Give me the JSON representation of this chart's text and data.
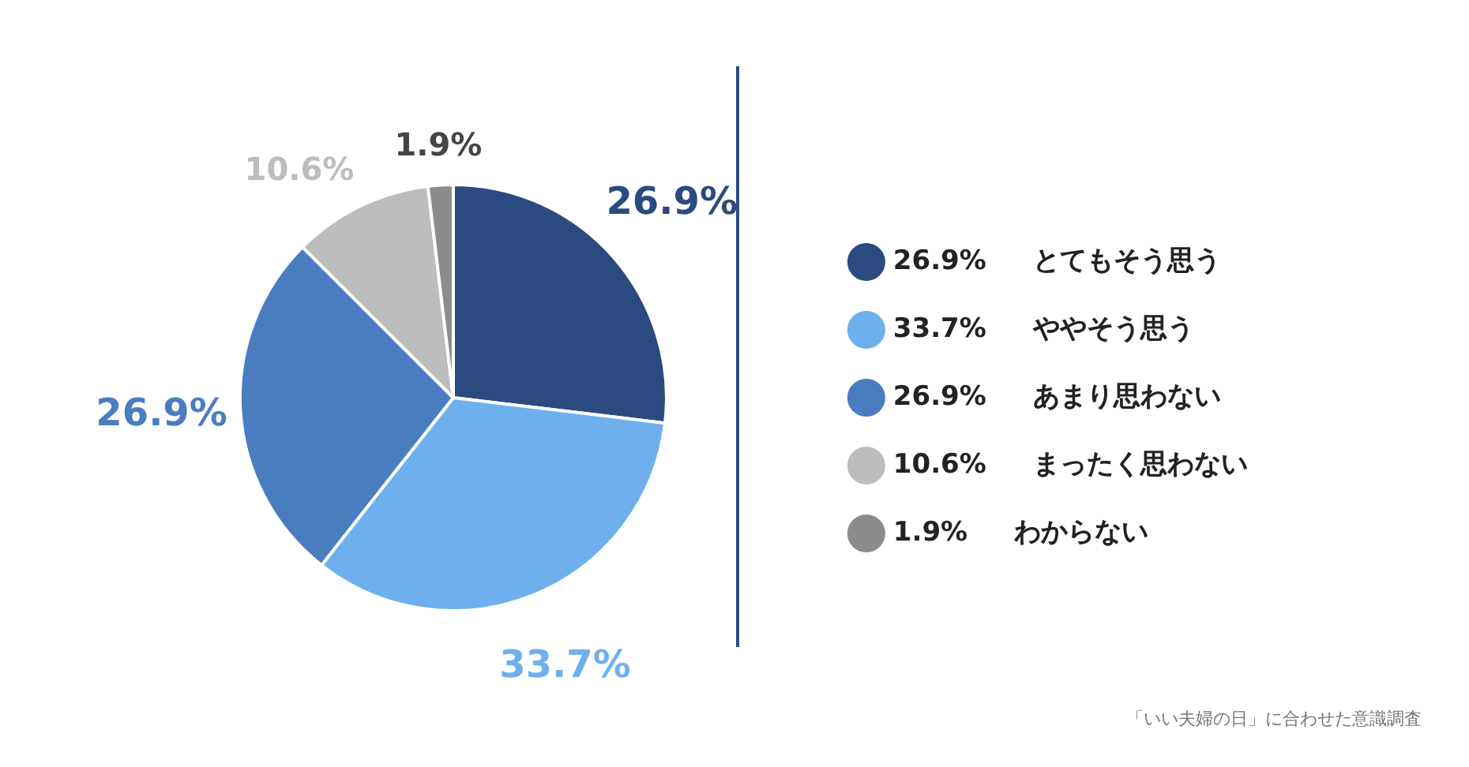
{
  "chart_data": {
    "type": "pie",
    "categories": [
      "とてもそう思う",
      "ややそう思う",
      "あまり思わない",
      "まったく思わない",
      "わからない"
    ],
    "values": [
      26.9,
      33.7,
      26.9,
      10.6,
      1.9
    ],
    "value_labels": [
      "26.9%",
      "33.7%",
      "26.9%",
      "10.6%",
      "1.9%"
    ],
    "colors": [
      "#2b4a80",
      "#6eb0ee",
      "#4a7dbf",
      "#bdbdbd",
      "#8c8c8c"
    ],
    "legend": "right",
    "annotations": [
      "「いい夫婦の日」に合わせた意識調査"
    ]
  }
}
